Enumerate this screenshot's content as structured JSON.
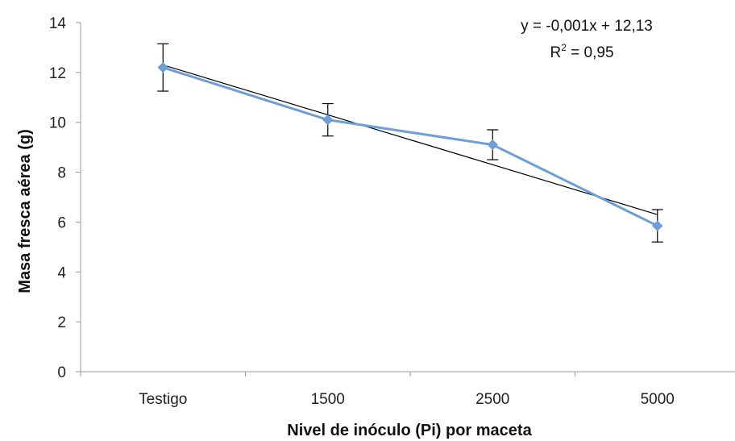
{
  "chart_data": {
    "type": "line",
    "title": "",
    "xlabel": "Nivel de inóculo (Pi)  por maceta",
    "ylabel": "Masa fresca aérea (g)",
    "categories": [
      "Testigo",
      "1500",
      "2500",
      "5000"
    ],
    "series": [
      {
        "name": "",
        "values": [
          12.2,
          10.1,
          9.1,
          5.85
        ],
        "error": [
          0.95,
          0.65,
          0.6,
          0.65
        ],
        "color": "#6d9ed6"
      }
    ],
    "trendline": {
      "equation": "y = -0,001x + 12,13",
      "r2_prefix": "R",
      "r2_suffix": " = 0,95",
      "start_value": 12.3,
      "end_value": 6.3,
      "color": "#000000"
    },
    "yticks": [
      "0",
      "2",
      "4",
      "6",
      "8",
      "10",
      "12",
      "14"
    ],
    "ylim": [
      0,
      14
    ],
    "grid": false,
    "legend": "none"
  }
}
